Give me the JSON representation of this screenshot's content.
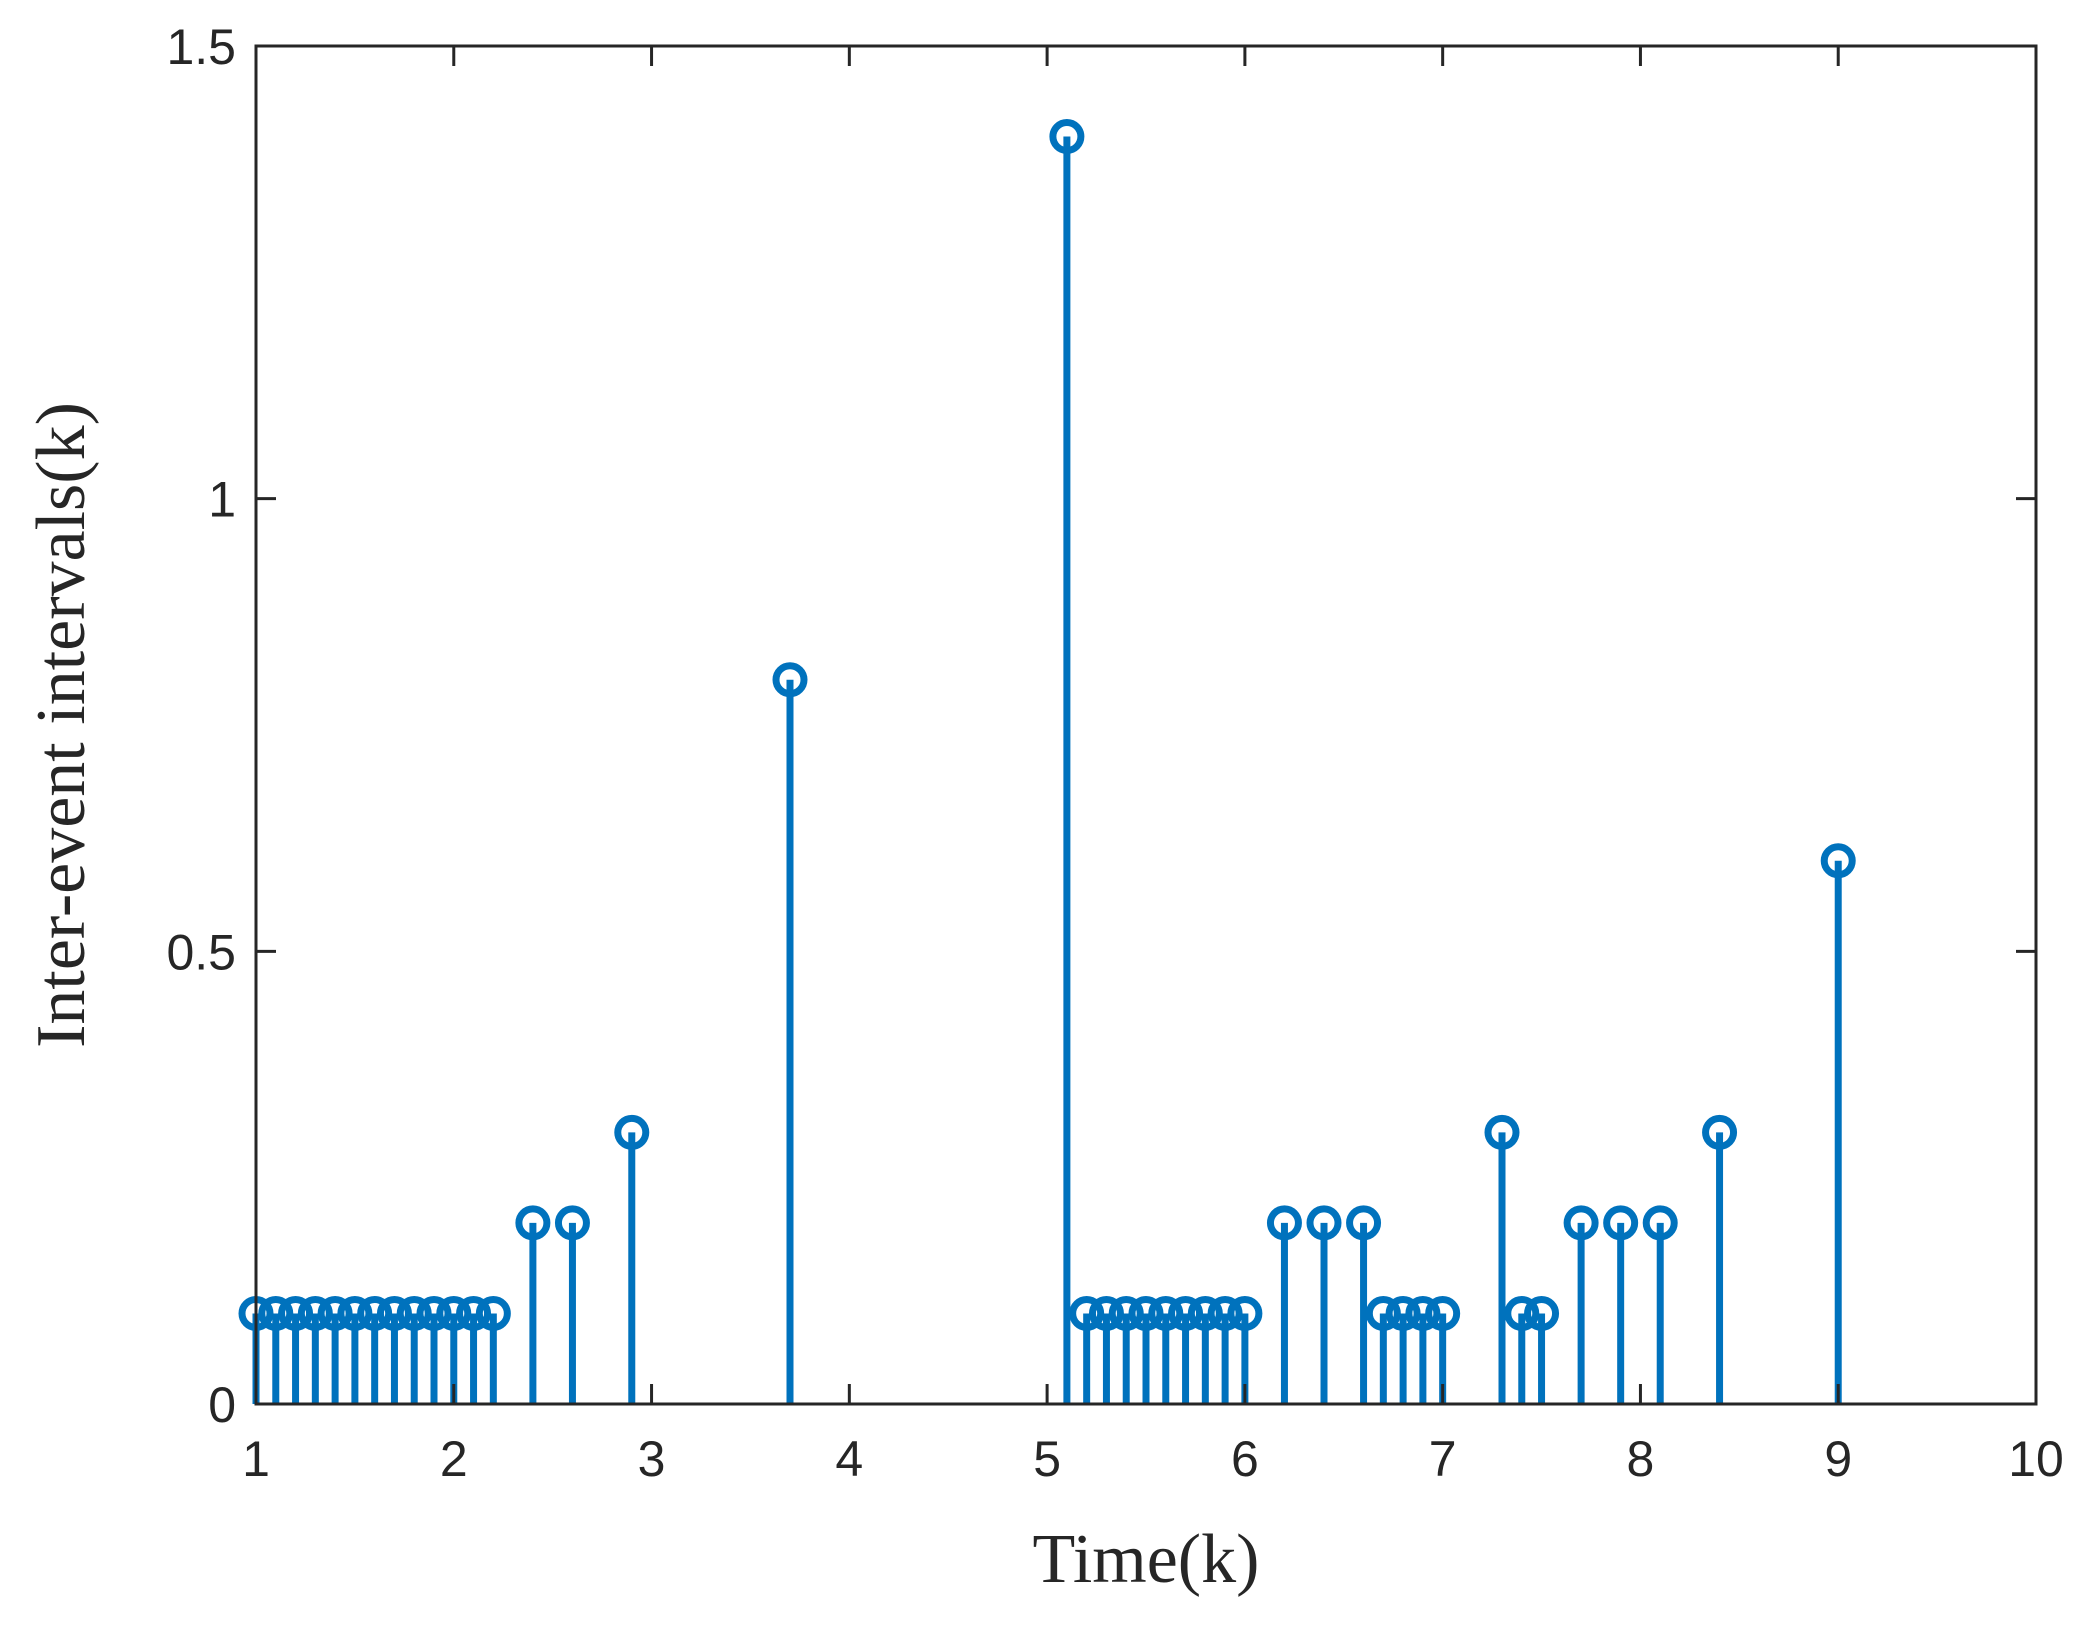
{
  "chart_data": {
    "type": "stem",
    "xlabel": "Time(k)",
    "ylabel": "Inter-event intervals(k)",
    "xlim": [
      1,
      10
    ],
    "ylim": [
      0,
      1.5
    ],
    "xticks": [
      1,
      2,
      3,
      4,
      5,
      6,
      7,
      8,
      9,
      10
    ],
    "yticks": [
      0,
      0.5,
      1,
      1.5
    ],
    "xtick_labels": [
      "1",
      "2",
      "3",
      "4",
      "5",
      "6",
      "7",
      "8",
      "9",
      "10"
    ],
    "ytick_labels": [
      "0",
      "0.5",
      "1",
      "1.5"
    ],
    "grid": false,
    "series": [
      {
        "color": "#0072BD",
        "x": [
          1.0,
          1.1,
          1.2,
          1.3,
          1.4,
          1.5,
          1.6,
          1.7,
          1.8,
          1.9,
          2.0,
          2.1,
          2.2,
          2.4,
          2.6,
          2.9,
          3.7,
          5.1,
          5.2,
          5.3,
          5.4,
          5.5,
          5.6,
          5.7,
          5.8,
          5.9,
          6.0,
          6.2,
          6.4,
          6.6,
          6.7,
          6.8,
          6.9,
          7.0,
          7.3,
          7.4,
          7.5,
          7.7,
          7.9,
          8.1,
          8.4,
          9.0
        ],
        "y": [
          0.1,
          0.1,
          0.1,
          0.1,
          0.1,
          0.1,
          0.1,
          0.1,
          0.1,
          0.1,
          0.1,
          0.1,
          0.1,
          0.2,
          0.2,
          0.3,
          0.8,
          1.4,
          0.1,
          0.1,
          0.1,
          0.1,
          0.1,
          0.1,
          0.1,
          0.1,
          0.1,
          0.2,
          0.2,
          0.2,
          0.1,
          0.1,
          0.1,
          0.1,
          0.3,
          0.1,
          0.1,
          0.2,
          0.2,
          0.2,
          0.3,
          0.6
        ]
      }
    ]
  }
}
